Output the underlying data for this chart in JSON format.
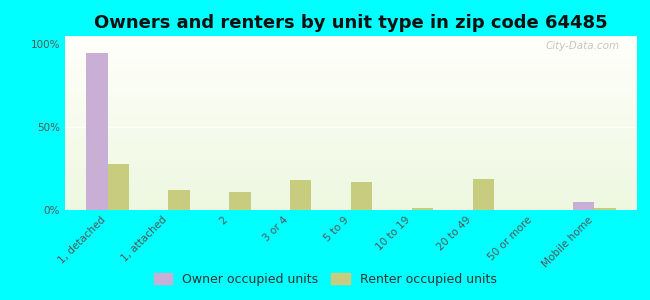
{
  "title": "Owners and renters by unit type in zip code 64485",
  "categories": [
    "1, detached",
    "1, attached",
    "2",
    "3 or 4",
    "5 to 9",
    "10 to 19",
    "20 to 49",
    "50 or more",
    "Mobile home"
  ],
  "owner_values": [
    95,
    0,
    0,
    0,
    0,
    0,
    0,
    0,
    5
  ],
  "renter_values": [
    28,
    12,
    11,
    18,
    17,
    1,
    19,
    0,
    1
  ],
  "owner_color": "#c9aed6",
  "renter_color": "#c8cc7e",
  "outer_background": "#00ffff",
  "ylabel_ticks": [
    "0%",
    "50%",
    "100%"
  ],
  "ytick_vals": [
    0,
    50,
    100
  ],
  "ylim": [
    0,
    105
  ],
  "bar_width": 0.35,
  "title_fontsize": 13,
  "tick_fontsize": 7.5,
  "legend_fontsize": 9,
  "watermark": "City-Data.com"
}
